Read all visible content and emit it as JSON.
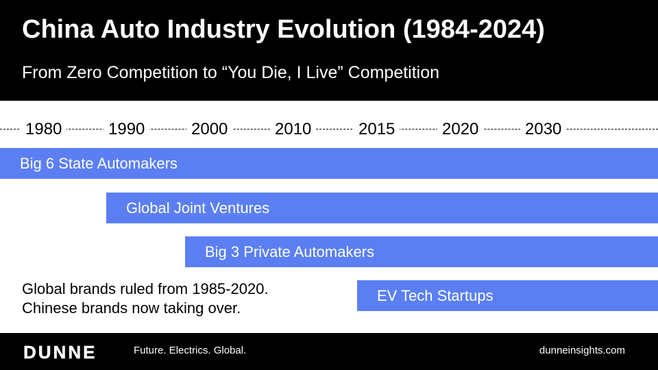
{
  "header": {
    "title": "China Auto Industry Evolution (1984-2024)",
    "subtitle": "From Zero Competition to “You Die, I Live” Competition"
  },
  "timeline": {
    "years": [
      "1980",
      "1990",
      "2000",
      "2010",
      "2015",
      "2020",
      "2030"
    ]
  },
  "bars": [
    {
      "label": "Big 6 State Automakers"
    },
    {
      "label": "Global Joint Ventures"
    },
    {
      "label": "Big 3 Private Automakers"
    },
    {
      "label": "EV Tech Startups"
    }
  ],
  "note": {
    "line1": "Global brands ruled from 1985-2020.",
    "line2": "Chinese brands now taking over."
  },
  "footer": {
    "logo": "DUNNE",
    "tagline": "Future. Electrics. Global.",
    "website": "dunneinsights.com"
  },
  "colors": {
    "bar": "#5b7ff3",
    "background_dark": "#000000",
    "text_light": "#ffffff"
  }
}
